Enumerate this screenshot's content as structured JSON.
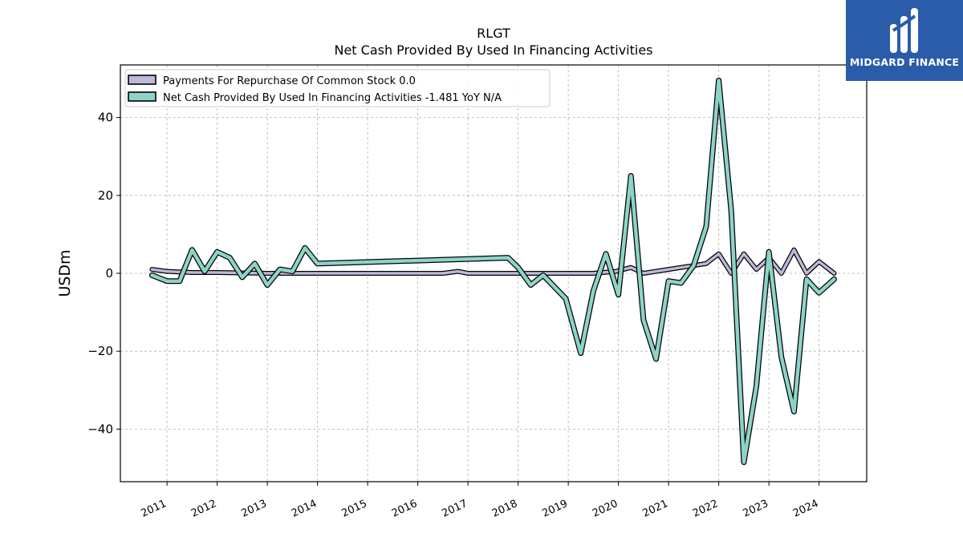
{
  "brand": {
    "name": "MIDGARD FINANCE",
    "logo_icon": "midgard-m-logo-icon",
    "background": "#2a5caa"
  },
  "chart_data": {
    "type": "line",
    "title": "RLGT",
    "subtitle": "Net Cash Provided By Used In Financing Activities",
    "xlabel": "",
    "ylabel": "USDm",
    "ylim": [
      -53.5,
      53.5
    ],
    "yticks": [
      -40,
      -20,
      0,
      20,
      40
    ],
    "ytick_labels": [
      "−40",
      "−20",
      "0",
      "20",
      "40"
    ],
    "xlim": [
      2010.07,
      2024.95
    ],
    "xticks": [
      2011,
      2012,
      2013,
      2014,
      2015,
      2016,
      2017,
      2018,
      2019,
      2020,
      2021,
      2022,
      2023,
      2024
    ],
    "xtick_labels": [
      "2011",
      "2012",
      "2013",
      "2014",
      "2015",
      "2016",
      "2017",
      "2018",
      "2019",
      "2020",
      "2021",
      "2022",
      "2023",
      "2024"
    ],
    "grid": true,
    "legend_position": "top-left",
    "series": [
      {
        "name": "Payments For Repurchase Of Common Stock",
        "legend_label": "Payments For Repurchase Of Common Stock  0.0",
        "color": "#bcb9d9",
        "x": [
          2010.7,
          2011.0,
          2011.5,
          2012.0,
          2012.5,
          2013.0,
          2013.5,
          2014.0,
          2015.0,
          2016.0,
          2016.5,
          2016.8,
          2017.0,
          2017.5,
          2017.8,
          2018.0,
          2018.5,
          2019.0,
          2019.5,
          2019.95,
          2020.25,
          2020.5,
          2021.0,
          2021.5,
          2021.75,
          2022.0,
          2022.25,
          2022.5,
          2022.75,
          2023.0,
          2023.25,
          2023.5,
          2023.75,
          2024.0,
          2024.3
        ],
        "y": [
          1.0,
          0.5,
          0.2,
          0.2,
          0.1,
          0.0,
          0.0,
          0.0,
          0.0,
          0.0,
          0.0,
          0.5,
          0.0,
          0.0,
          0.0,
          0.0,
          0.0,
          0.0,
          0.0,
          0.5,
          1.5,
          0.0,
          1.0,
          2.0,
          2.5,
          5.0,
          0.0,
          5.0,
          1.0,
          4.0,
          0.0,
          6.0,
          0.0,
          3.0,
          0.0
        ]
      },
      {
        "name": "Net Cash Provided By Used In Financing Activities",
        "legend_label": "Net Cash Provided By Used In Financing Activities  -1.481 YoY N/A",
        "color": "#8dd3c7",
        "x": [
          2010.7,
          2011.0,
          2011.25,
          2011.5,
          2011.75,
          2012.0,
          2012.25,
          2012.5,
          2012.75,
          2013.0,
          2013.25,
          2013.5,
          2013.75,
          2014.0,
          2017.8,
          2018.0,
          2018.25,
          2018.5,
          2018.95,
          2019.25,
          2019.5,
          2019.75,
          2020.0,
          2020.25,
          2020.5,
          2020.75,
          2021.0,
          2021.25,
          2021.5,
          2021.75,
          2022.0,
          2022.25,
          2022.5,
          2022.75,
          2023.0,
          2023.25,
          2023.5,
          2023.75,
          2024.0,
          2024.3
        ],
        "y": [
          -0.5,
          -2.0,
          -2.0,
          6.0,
          0.5,
          5.5,
          4.0,
          -1.0,
          2.5,
          -3.0,
          1.0,
          0.5,
          6.5,
          2.5,
          4.0,
          1.5,
          -3.0,
          -0.5,
          -6.5,
          -20.5,
          -4.5,
          5.0,
          -5.5,
          25.0,
          -12.0,
          -22.0,
          -2.0,
          -2.5,
          2.0,
          12.0,
          49.5,
          16.0,
          -48.5,
          -29.0,
          5.5,
          -21.5,
          -35.5,
          -1.5,
          -5.0,
          -1.5
        ]
      }
    ]
  }
}
